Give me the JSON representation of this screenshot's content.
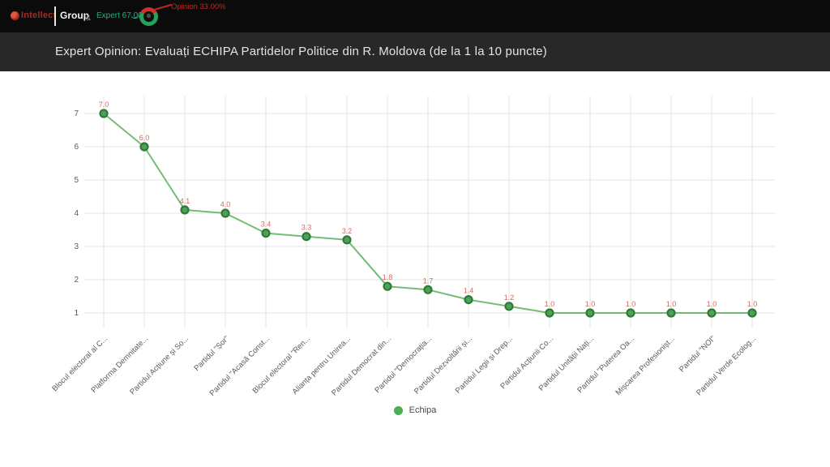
{
  "header": {
    "brand_primary": "Intellect",
    "brand_secondary": "Group",
    "brand_amp": "&",
    "expert_label": "Expert 67.00%",
    "opinion_label": "Opinion 33.00%",
    "expert_pct": 67,
    "opinion_pct": 33,
    "expert_color": "#1cb287",
    "opinion_color": "#c32b20"
  },
  "title_bar": {
    "title": "Expert Opinion: Evaluați ECHIPA Partidelor Politice din R. Moldova (de la 1 la 10 puncte)"
  },
  "legend": {
    "items": [
      {
        "label": "Echipa",
        "color": "#4caf50"
      }
    ]
  },
  "chart_data": {
    "type": "line",
    "title": "",
    "xlabel": "",
    "ylabel": "",
    "categories": [
      "Blocul electoral al C...",
      "Platforma Demnitate...",
      "Partidul Acțiune și So...",
      "Partidul \"Șor\"",
      "Partidul \"Acasă Const...",
      "Blocul electoral \"Ren...",
      "Alianța pentru Unirea...",
      "Partidul Democrat din...",
      "Partidul \"Democrația...",
      "Partidul Dezvoltării și...",
      "Partidul Legii și Drep...",
      "Partidul Acțiunii Co...",
      "Partidul Unității Nați...",
      "Partidul \"Puterea Oa...",
      "Mișcarea Profesionișt...",
      "Partidul \"NOI\"",
      "Partidul Verde Ecolog..."
    ],
    "series": [
      {
        "name": "Echipa",
        "values": [
          7.0,
          6.0,
          4.1,
          4.0,
          3.4,
          3.3,
          3.2,
          1.8,
          1.7,
          1.4,
          1.2,
          1.0,
          1.0,
          1.0,
          1.0,
          1.0,
          1.0
        ]
      }
    ],
    "value_labels": [
      "7.0",
      "6.0",
      "4.1",
      "4.0",
      "3.4",
      "3.3",
      "3.2",
      "1.8",
      "1.7",
      "1.4",
      "1.2",
      "1.0",
      "1.0",
      "1.0",
      "1.0",
      "1.0",
      "1.0"
    ],
    "y_ticks": [
      1,
      2,
      3,
      4,
      5,
      6,
      7
    ],
    "ylim": [
      1,
      7
    ],
    "grid": true,
    "legend_position": "bottom",
    "line_color": "#63b666",
    "marker_fill": "#4ea157",
    "marker_stroke": "#2f7a36",
    "value_label_color": "#d9675e"
  }
}
